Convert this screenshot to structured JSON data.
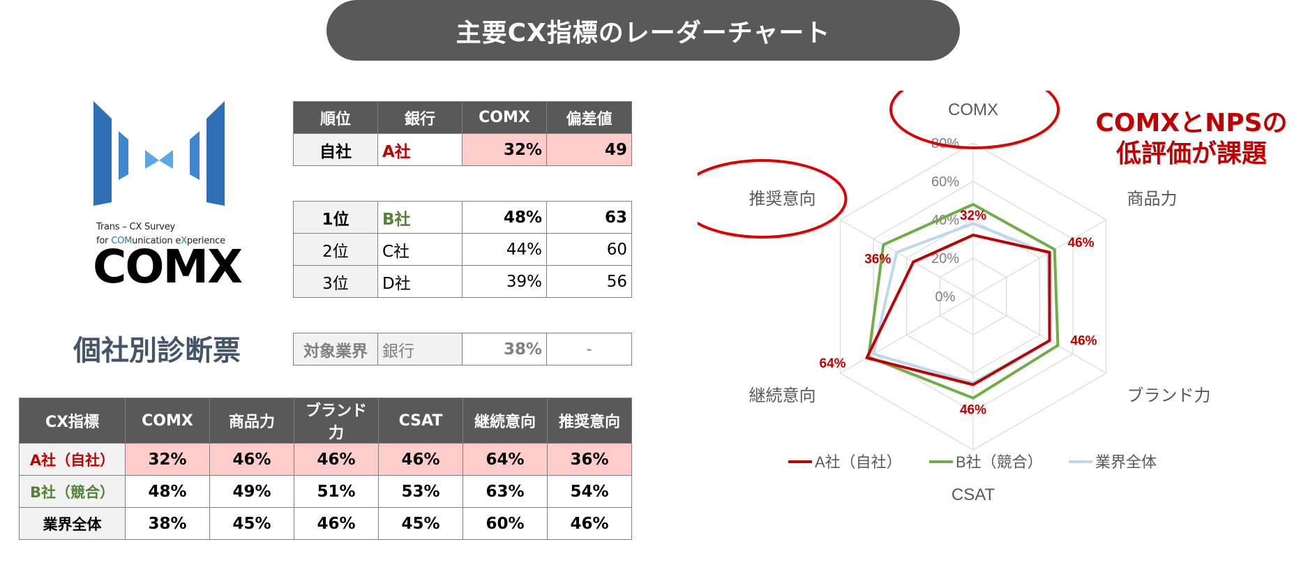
{
  "header": {
    "title": "主要CX指標のレーダーチャート"
  },
  "logo": {
    "line1": "Trans – CX Survey",
    "line2_pre": "for ",
    "line2_hl1": "COM",
    "line2_mid": "unication e",
    "line2_hl2": "X",
    "line2_post": "perience",
    "wordmark": "COMX",
    "colors": {
      "dark_blue": "#2e6fb5",
      "mid_blue": "#4a8fd4",
      "light_blue": "#6ab0e8"
    }
  },
  "diag_title": "個社別診断票",
  "rank_table": {
    "headers": [
      "順位",
      "銀行",
      "COMX",
      "偏差値"
    ],
    "self": {
      "rank": "自社",
      "bank": "A社",
      "comx": "32%",
      "dev": "49"
    },
    "rows": [
      {
        "rank": "1位",
        "bank": "B社",
        "comx": "48%",
        "dev": "63"
      },
      {
        "rank": "2位",
        "bank": "C社",
        "comx": "44%",
        "dev": "60"
      },
      {
        "rank": "3位",
        "bank": "D社",
        "comx": "39%",
        "dev": "56"
      }
    ],
    "industry": {
      "label": "対象業界",
      "bank": "銀行",
      "comx": "38%",
      "dev": "-"
    }
  },
  "cx_table": {
    "headers": [
      "CX指標",
      "COMX",
      "商品力",
      "ブランド力",
      "CSAT",
      "継続意向",
      "推奨意向"
    ],
    "rows": [
      {
        "name": "A社（自社）",
        "values": [
          "32%",
          "46%",
          "46%",
          "46%",
          "64%",
          "36%"
        ]
      },
      {
        "name": "B社（競合）",
        "values": [
          "48%",
          "49%",
          "51%",
          "53%",
          "63%",
          "54%"
        ]
      },
      {
        "name": "業界全体",
        "values": [
          "38%",
          "45%",
          "46%",
          "45%",
          "60%",
          "46%"
        ]
      }
    ]
  },
  "callout": {
    "line1": "COMXとNPSの",
    "line2": "低評価が課題"
  },
  "chart_data": {
    "type": "radar",
    "axes": [
      "COMX",
      "商品力",
      "ブランド力",
      "CSAT",
      "継続意向",
      "推奨意向"
    ],
    "rlim": [
      0,
      80
    ],
    "ticks": [
      "0%",
      "20%",
      "40%",
      "60%",
      "80%"
    ],
    "tick_values": [
      0,
      20,
      40,
      60,
      80
    ],
    "series": [
      {
        "name": "A社（自社）",
        "values": [
          32,
          46,
          46,
          46,
          64,
          36
        ],
        "color": "#c00000",
        "labels": [
          "32%",
          "46%",
          "46%",
          "46%",
          "64%",
          "36%"
        ]
      },
      {
        "name": "B社（競合）",
        "values": [
          48,
          49,
          51,
          53,
          63,
          54
        ],
        "color": "#70ad47"
      },
      {
        "name": "業界全体",
        "values": [
          38,
          45,
          46,
          45,
          60,
          46
        ],
        "color": "#bdd7ee"
      }
    ],
    "highlight_axes": [
      "COMX",
      "推奨意向"
    ],
    "highlight_color": "#e00000",
    "legend": "bottom"
  }
}
